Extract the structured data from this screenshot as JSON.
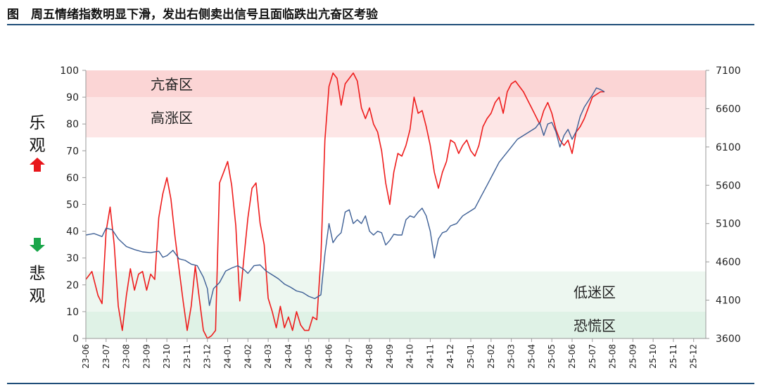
{
  "figure": {
    "title": "图　周五情绪指数明显下滑，发出右侧卖出信号且面临跌出亢奋区考验"
  },
  "side_labels": {
    "optimistic_top": "乐",
    "optimistic_bottom": "观",
    "pessimistic_top": "悲",
    "pessimistic_bottom": "观"
  },
  "zones": [
    {
      "label": "亢奋区",
      "from": 90,
      "to": 100,
      "color": "#fbd5d5"
    },
    {
      "label": "高涨区",
      "from": 75,
      "to": 90,
      "color": "#fde6e6"
    },
    {
      "label": "低迷区",
      "from": 10,
      "to": 25,
      "color": "#edf7f0"
    },
    {
      "label": "恐慌区",
      "from": 0,
      "to": 10,
      "color": "#dff2e6"
    }
  ],
  "colors": {
    "sentiment": "#ee1c1c",
    "index": "#3d5f95",
    "arrow_up": "#e8161b",
    "arrow_down": "#1aa64a",
    "rule": "#1f4e79"
  },
  "chart_data": {
    "type": "line",
    "x": [
      "23-06",
      "23-07",
      "23-08",
      "23-09",
      "23-10",
      "23-11",
      "23-12",
      "24-01",
      "24-02",
      "24-03",
      "24-04",
      "24-05",
      "24-06",
      "24-07",
      "24-08",
      "24-09",
      "24-10",
      "24-11",
      "24-12",
      "25-01",
      "25-02",
      "25-03",
      "25-04",
      "25-05",
      "25-06",
      "25-07",
      "25-08",
      "25-09",
      "25-10",
      "25-11",
      "25-12"
    ],
    "y_left": {
      "range": [
        0,
        100
      ],
      "ticks": [
        0,
        10,
        20,
        30,
        40,
        50,
        60,
        70,
        80,
        90,
        100
      ]
    },
    "y_right": {
      "range": [
        3600,
        7100
      ],
      "ticks": [
        3600,
        4100,
        4600,
        5100,
        5600,
        6100,
        6600,
        7100
      ]
    },
    "series": [
      {
        "axis": "left",
        "points": [
          [
            0,
            22
          ],
          [
            0.3,
            25
          ],
          [
            0.6,
            16
          ],
          [
            0.8,
            13
          ],
          [
            1.0,
            40
          ],
          [
            1.2,
            49
          ],
          [
            1.4,
            35
          ],
          [
            1.6,
            12
          ],
          [
            1.8,
            3
          ],
          [
            2.0,
            16
          ],
          [
            2.2,
            26
          ],
          [
            2.4,
            18
          ],
          [
            2.6,
            24
          ],
          [
            2.8,
            25
          ],
          [
            3.0,
            18
          ],
          [
            3.2,
            24
          ],
          [
            3.4,
            22
          ],
          [
            3.6,
            45
          ],
          [
            3.8,
            54
          ],
          [
            4.0,
            60
          ],
          [
            4.2,
            52
          ],
          [
            4.4,
            38
          ],
          [
            4.6,
            26
          ],
          [
            4.8,
            14
          ],
          [
            5.0,
            3
          ],
          [
            5.2,
            12
          ],
          [
            5.4,
            27
          ],
          [
            5.6,
            15
          ],
          [
            5.8,
            3
          ],
          [
            6.0,
            0
          ],
          [
            6.2,
            1
          ],
          [
            6.4,
            3
          ],
          [
            6.6,
            58
          ],
          [
            6.8,
            62
          ],
          [
            7.0,
            66
          ],
          [
            7.2,
            57
          ],
          [
            7.4,
            42
          ],
          [
            7.6,
            14
          ],
          [
            7.8,
            30
          ],
          [
            8.0,
            45
          ],
          [
            8.2,
            56
          ],
          [
            8.4,
            58
          ],
          [
            8.6,
            43
          ],
          [
            8.8,
            35
          ],
          [
            9.0,
            15
          ],
          [
            9.2,
            10
          ],
          [
            9.4,
            4
          ],
          [
            9.6,
            12
          ],
          [
            9.8,
            4
          ],
          [
            10.0,
            8
          ],
          [
            10.2,
            3
          ],
          [
            10.4,
            10
          ],
          [
            10.6,
            5
          ],
          [
            10.8,
            3
          ],
          [
            11.0,
            3
          ],
          [
            11.2,
            8
          ],
          [
            11.4,
            7
          ],
          [
            11.6,
            30
          ],
          [
            11.8,
            74
          ],
          [
            12.0,
            94
          ],
          [
            12.2,
            99
          ],
          [
            12.4,
            97
          ],
          [
            12.6,
            87
          ],
          [
            12.8,
            95
          ],
          [
            13.0,
            97
          ],
          [
            13.2,
            99
          ],
          [
            13.4,
            96
          ],
          [
            13.6,
            86
          ],
          [
            13.8,
            82
          ],
          [
            14.0,
            86
          ],
          [
            14.2,
            80
          ],
          [
            14.4,
            77
          ],
          [
            14.6,
            70
          ],
          [
            14.8,
            58
          ],
          [
            15.0,
            50
          ],
          [
            15.2,
            62
          ],
          [
            15.4,
            69
          ],
          [
            15.6,
            68
          ],
          [
            15.8,
            72
          ],
          [
            16.0,
            78
          ],
          [
            16.2,
            90
          ],
          [
            16.4,
            84
          ],
          [
            16.6,
            85
          ],
          [
            16.8,
            79
          ],
          [
            17.0,
            72
          ],
          [
            17.2,
            62
          ],
          [
            17.4,
            56
          ],
          [
            17.6,
            62
          ],
          [
            17.8,
            66
          ],
          [
            18.0,
            74
          ],
          [
            18.2,
            73
          ],
          [
            18.4,
            69
          ],
          [
            18.6,
            72
          ],
          [
            18.8,
            74
          ],
          [
            19.0,
            70
          ],
          [
            19.2,
            68
          ],
          [
            19.4,
            72
          ],
          [
            19.6,
            79
          ],
          [
            19.8,
            82
          ],
          [
            20.0,
            84
          ],
          [
            20.2,
            88
          ],
          [
            20.4,
            90
          ],
          [
            20.6,
            84
          ],
          [
            20.8,
            92
          ],
          [
            21.0,
            95
          ],
          [
            21.2,
            96
          ],
          [
            21.4,
            94
          ],
          [
            21.6,
            92
          ],
          [
            21.8,
            89
          ],
          [
            22.0,
            86
          ],
          [
            22.2,
            83
          ],
          [
            22.4,
            80
          ],
          [
            22.6,
            85
          ],
          [
            22.8,
            88
          ],
          [
            23.0,
            84
          ],
          [
            23.2,
            78
          ],
          [
            23.4,
            74
          ],
          [
            23.6,
            72
          ],
          [
            23.8,
            74
          ],
          [
            24.0,
            69
          ],
          [
            24.2,
            77
          ],
          [
            24.4,
            79
          ],
          [
            24.6,
            82
          ],
          [
            24.8,
            86
          ],
          [
            25.0,
            90
          ],
          [
            25.2,
            91
          ],
          [
            25.4,
            92
          ],
          [
            25.6,
            92
          ]
        ]
      },
      {
        "axis": "right",
        "points": [
          [
            0,
            4950
          ],
          [
            0.4,
            4970
          ],
          [
            0.8,
            4930
          ],
          [
            1.0,
            5040
          ],
          [
            1.3,
            5020
          ],
          [
            1.6,
            4900
          ],
          [
            1.8,
            4850
          ],
          [
            2.0,
            4800
          ],
          [
            2.4,
            4760
          ],
          [
            2.8,
            4730
          ],
          [
            3.2,
            4720
          ],
          [
            3.6,
            4740
          ],
          [
            3.8,
            4660
          ],
          [
            4.0,
            4680
          ],
          [
            4.3,
            4750
          ],
          [
            4.6,
            4640
          ],
          [
            4.9,
            4620
          ],
          [
            5.2,
            4570
          ],
          [
            5.5,
            4550
          ],
          [
            5.8,
            4400
          ],
          [
            6.0,
            4250
          ],
          [
            6.1,
            4030
          ],
          [
            6.3,
            4250
          ],
          [
            6.6,
            4330
          ],
          [
            6.9,
            4480
          ],
          [
            7.2,
            4520
          ],
          [
            7.5,
            4550
          ],
          [
            7.8,
            4500
          ],
          [
            8.0,
            4450
          ],
          [
            8.3,
            4550
          ],
          [
            8.6,
            4560
          ],
          [
            8.9,
            4480
          ],
          [
            9.2,
            4430
          ],
          [
            9.5,
            4380
          ],
          [
            9.8,
            4310
          ],
          [
            10.1,
            4270
          ],
          [
            10.4,
            4220
          ],
          [
            10.7,
            4200
          ],
          [
            11.0,
            4150
          ],
          [
            11.3,
            4120
          ],
          [
            11.6,
            4170
          ],
          [
            11.8,
            4700
          ],
          [
            12.0,
            5100
          ],
          [
            12.2,
            4850
          ],
          [
            12.4,
            4930
          ],
          [
            12.6,
            4980
          ],
          [
            12.8,
            5250
          ],
          [
            13.0,
            5280
          ],
          [
            13.2,
            5100
          ],
          [
            13.4,
            5150
          ],
          [
            13.6,
            5100
          ],
          [
            13.8,
            5200
          ],
          [
            14.0,
            5000
          ],
          [
            14.2,
            4950
          ],
          [
            14.4,
            5000
          ],
          [
            14.6,
            4980
          ],
          [
            14.8,
            4820
          ],
          [
            15.0,
            4880
          ],
          [
            15.2,
            4960
          ],
          [
            15.4,
            4950
          ],
          [
            15.6,
            4950
          ],
          [
            15.8,
            5150
          ],
          [
            16.0,
            5200
          ],
          [
            16.2,
            5180
          ],
          [
            16.4,
            5250
          ],
          [
            16.6,
            5300
          ],
          [
            16.8,
            5200
          ],
          [
            17.0,
            5000
          ],
          [
            17.2,
            4650
          ],
          [
            17.4,
            4900
          ],
          [
            17.6,
            4980
          ],
          [
            17.8,
            5000
          ],
          [
            18.0,
            5070
          ],
          [
            18.3,
            5100
          ],
          [
            18.6,
            5200
          ],
          [
            18.9,
            5250
          ],
          [
            19.2,
            5300
          ],
          [
            19.5,
            5450
          ],
          [
            19.8,
            5600
          ],
          [
            20.1,
            5750
          ],
          [
            20.4,
            5900
          ],
          [
            20.7,
            6000
          ],
          [
            21.0,
            6100
          ],
          [
            21.3,
            6200
          ],
          [
            21.6,
            6250
          ],
          [
            21.9,
            6300
          ],
          [
            22.2,
            6350
          ],
          [
            22.4,
            6420
          ],
          [
            22.6,
            6250
          ],
          [
            22.8,
            6400
          ],
          [
            23.0,
            6420
          ],
          [
            23.2,
            6300
          ],
          [
            23.4,
            6100
          ],
          [
            23.6,
            6250
          ],
          [
            23.8,
            6330
          ],
          [
            24.0,
            6200
          ],
          [
            24.2,
            6300
          ],
          [
            24.4,
            6500
          ],
          [
            24.6,
            6620
          ],
          [
            24.8,
            6700
          ],
          [
            25.0,
            6780
          ],
          [
            25.2,
            6870
          ],
          [
            25.4,
            6850
          ],
          [
            25.6,
            6820
          ]
        ]
      }
    ]
  }
}
